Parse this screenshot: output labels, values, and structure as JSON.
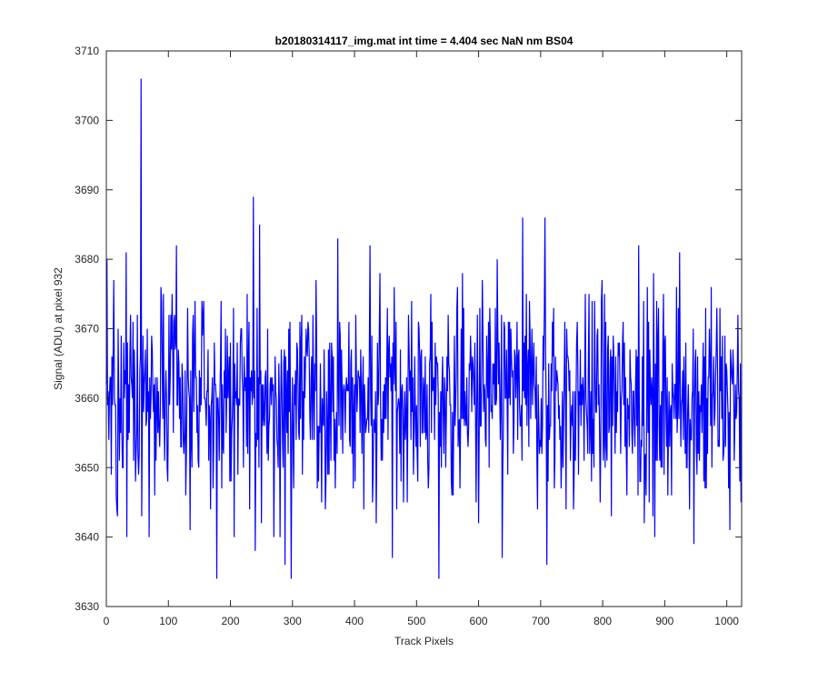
{
  "chart_data": {
    "type": "line",
    "title": "b20180314117_img.mat int time = 4.404 sec  NaN nm BS04",
    "xlabel": "Track Pixels",
    "ylabel": "Signal (ADU) at pixel 932",
    "xlim": [
      0,
      1024
    ],
    "ylim": [
      3630,
      3710
    ],
    "xticks": [
      0,
      100,
      200,
      300,
      400,
      500,
      600,
      700,
      800,
      900,
      1000
    ],
    "yticks": [
      3630,
      3640,
      3650,
      3660,
      3670,
      3680,
      3690,
      3700,
      3710
    ],
    "grid": false,
    "series": [
      {
        "color": "#0000ff",
        "noise": {
          "count": 1024,
          "mean": 3660,
          "std": 7.5,
          "min": 3634,
          "max": 3706
        },
        "peaks": [
          {
            "x": 1,
            "y": 3680
          },
          {
            "x": 8,
            "y": 3649
          },
          {
            "x": 17,
            "y": 3644
          },
          {
            "x": 32,
            "y": 3681
          },
          {
            "x": 33,
            "y": 3640
          },
          {
            "x": 56,
            "y": 3706
          },
          {
            "x": 57,
            "y": 3643
          },
          {
            "x": 69,
            "y": 3640
          },
          {
            "x": 113,
            "y": 3682
          },
          {
            "x": 135,
            "y": 3641
          },
          {
            "x": 178,
            "y": 3634
          },
          {
            "x": 237,
            "y": 3689
          },
          {
            "x": 247,
            "y": 3685
          },
          {
            "x": 240,
            "y": 3638
          },
          {
            "x": 288,
            "y": 3636
          },
          {
            "x": 298,
            "y": 3634
          },
          {
            "x": 425,
            "y": 3682
          },
          {
            "x": 461,
            "y": 3637
          },
          {
            "x": 536,
            "y": 3634
          },
          {
            "x": 638,
            "y": 3637
          },
          {
            "x": 671,
            "y": 3686
          },
          {
            "x": 707,
            "y": 3686
          },
          {
            "x": 710,
            "y": 3636
          },
          {
            "x": 858,
            "y": 3682
          },
          {
            "x": 884,
            "y": 3640
          },
          {
            "x": 924,
            "y": 3681
          },
          {
            "x": 947,
            "y": 3639
          },
          {
            "x": 1005,
            "y": 3641
          },
          {
            "x": 1023,
            "y": 3645
          }
        ]
      }
    ]
  }
}
